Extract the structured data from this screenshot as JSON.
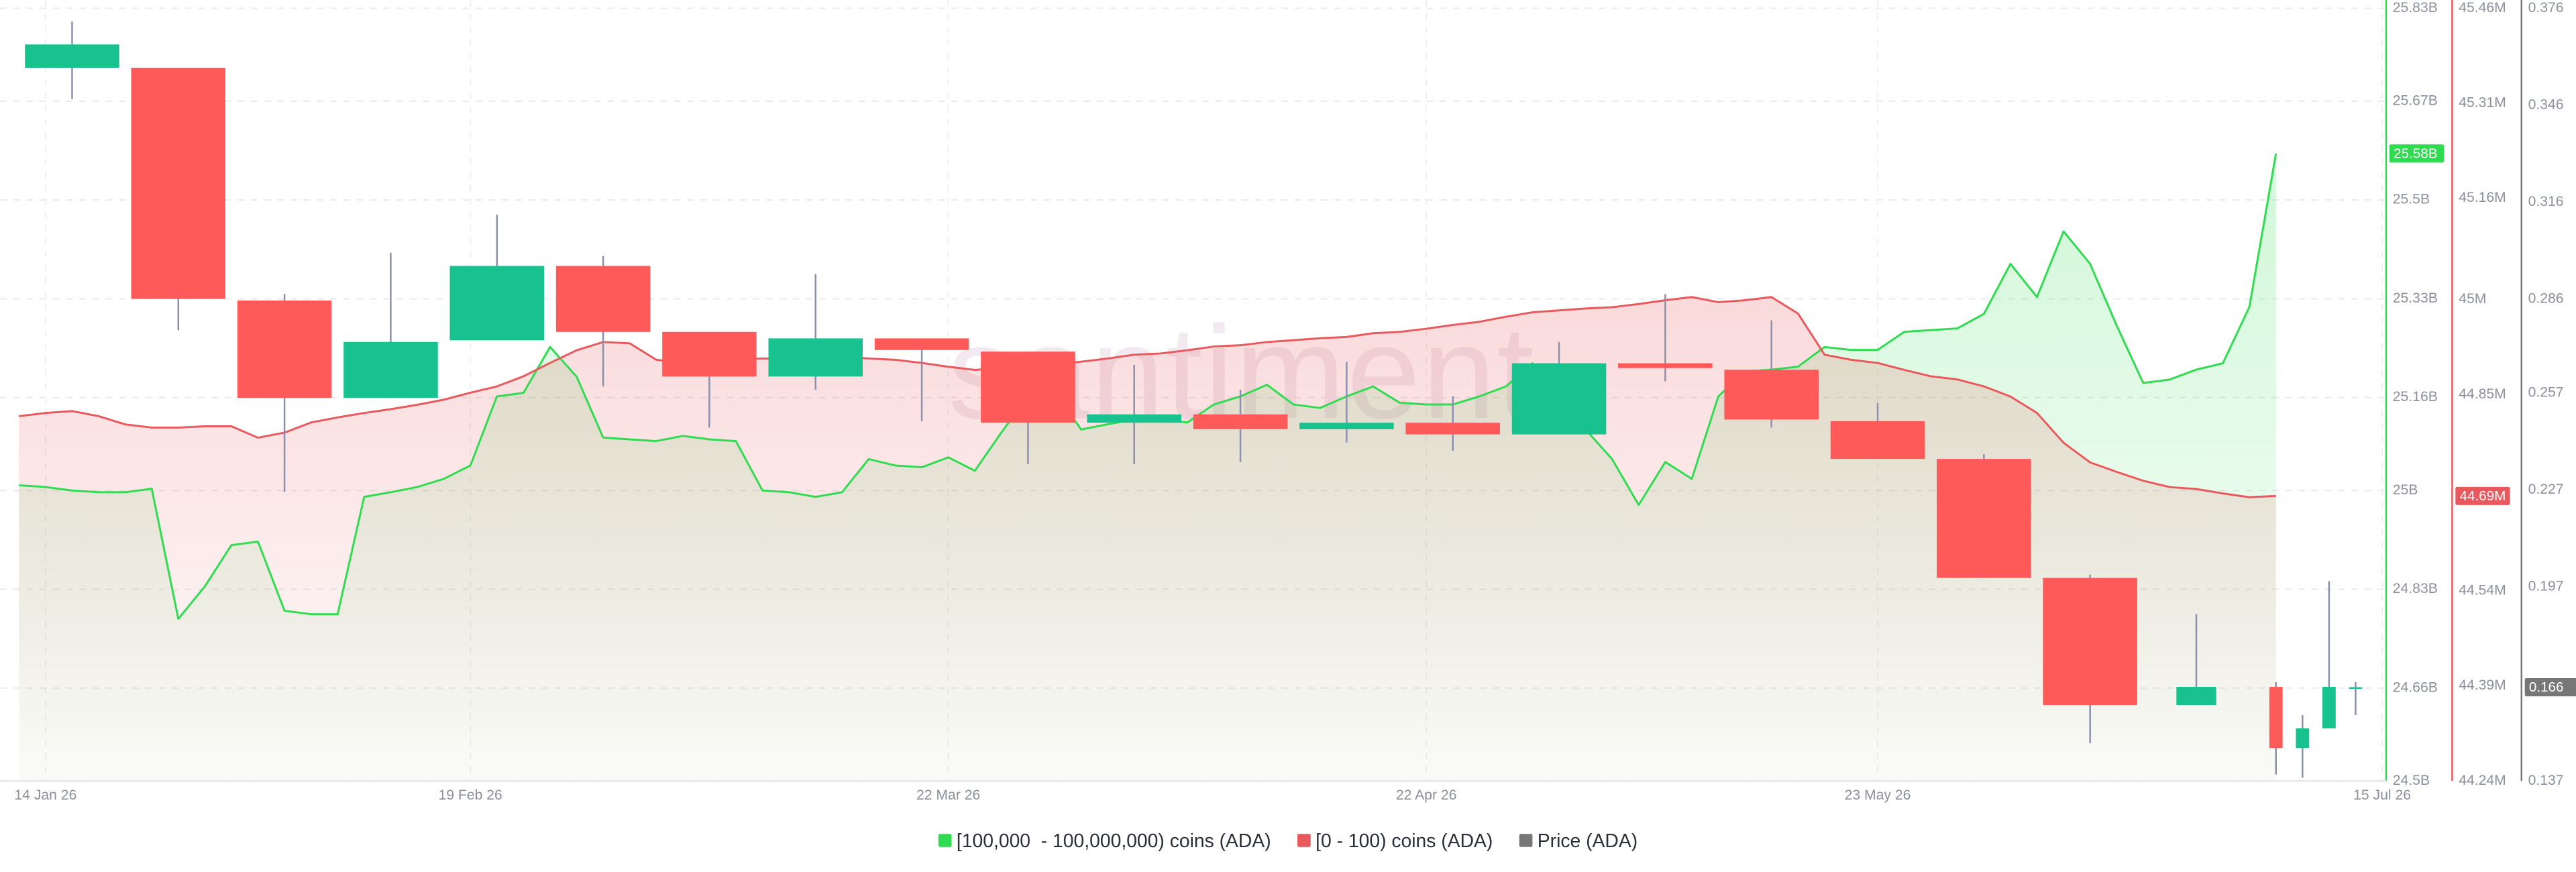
{
  "chart_data": {
    "type": "candlestick",
    "watermark": "santiment",
    "grid": true,
    "categories": [
      null,
      "14 Jan 26",
      null,
      null,
      null,
      null,
      null,
      null,
      null,
      null,
      null,
      null,
      null,
      null,
      null,
      null,
      null,
      "19 Feb 26",
      null,
      null,
      null,
      null,
      null,
      null,
      null,
      null,
      null,
      null,
      null,
      null,
      null,
      null,
      null,
      null,
      null,
      "22 Mar 26",
      null,
      null,
      null,
      null,
      null,
      null,
      null,
      null,
      null,
      null,
      null,
      null,
      null,
      null,
      null,
      null,
      null,
      "22 Apr 26",
      null,
      null,
      null,
      null,
      null,
      null,
      null,
      null,
      null,
      null,
      null,
      null,
      null,
      null,
      null,
      null,
      "23 May 26",
      null,
      null,
      null,
      null,
      null,
      null,
      null,
      null,
      null,
      null,
      null,
      null,
      null,
      null,
      null,
      null,
      null,
      null,
      "15 Jul 26"
    ],
    "ylim": [
      24500000000.0,
      25830000000.0
    ],
    "yticks": [
      {
        "value": 25830000000.0,
        "label": "25.83B"
      },
      {
        "value": 25670000000.0,
        "label": "25.67B"
      },
      {
        "value": 25500000000.0,
        "label": "25.5B"
      },
      {
        "value": 25330000000.0,
        "label": "25.33B"
      },
      {
        "value": 25160000000.0,
        "label": "25.16B"
      },
      {
        "value": 25000000000.0,
        "label": "25B"
      },
      {
        "value": 24830000000.0,
        "label": "24.83B"
      },
      {
        "value": 24660000000.0,
        "label": "24.66B"
      },
      {
        "value": 24500000000.0,
        "label": "24.5B"
      }
    ],
    "y2lim": [
      44240000.0,
      45460000.0
    ],
    "y2ticks": [
      {
        "value": 45460000.0,
        "label": "45.46M"
      },
      {
        "value": 45310000.0,
        "label": "45.31M"
      },
      {
        "value": 45160000.0,
        "label": "45.16M"
      },
      {
        "value": 45000000.0,
        "label": "45M"
      },
      {
        "value": 44850000.0,
        "label": "44.85M"
      },
      {
        "value": 44540000.0,
        "label": "44.54M"
      },
      {
        "value": 44390000.0,
        "label": "44.39M"
      },
      {
        "value": 44240000.0,
        "label": "44.24M"
      }
    ],
    "y3lim": [
      0.137,
      0.376
    ],
    "y3ticks": [
      0.376,
      0.346,
      0.316,
      0.286,
      0.257,
      0.227,
      0.197,
      0.137
    ],
    "series": [
      {
        "name": "[100,000  - 100,000,000) coins (ADA)",
        "type": "line",
        "axis": "y",
        "color": "#2fdc50",
        "values": [
          25009000000.0,
          25006000000.0,
          25000000000.0,
          24997000000.0,
          24997000000.0,
          25003000000.0,
          24779000000.0,
          24835000000.0,
          24906000000.0,
          24912000000.0,
          24793000000.0,
          24787000000.0,
          24787000000.0,
          24989000000.0,
          24997000000.0,
          25006000000.0,
          25020000000.0,
          25043000000.0,
          25162000000.0,
          25168000000.0,
          25247000000.0,
          25196000000.0,
          25091000000.0,
          25088000000.0,
          25085000000.0,
          25094000000.0,
          25088000000.0,
          25085000000.0,
          25000000000.0,
          24997000000.0,
          24989000000.0,
          24997000000.0,
          25054000000.0,
          25043000000.0,
          25040000000.0,
          25057000000.0,
          25034000000.0,
          25100000000.0,
          25162000000.0,
          25171000000.0,
          25105000000.0,
          25114000000.0,
          25122000000.0,
          25122000000.0,
          25117000000.0,
          25148000000.0,
          25162000000.0,
          25182000000.0,
          25148000000.0,
          25142000000.0,
          25162000000.0,
          25179000000.0,
          25151000000.0,
          25148000000.0,
          25148000000.0,
          25162000000.0,
          25179000000.0,
          25219000000.0,
          25185000000.0,
          25105000000.0,
          25054000000.0,
          24975000000.0,
          25049000000.0,
          25020000000.0,
          25162000000.0,
          25205000000.0,
          25208000000.0,
          25213000000.0,
          25247000000.0,
          25242000000.0,
          25242000000.0,
          25273000000.0,
          25276000000.0,
          25279000000.0,
          25304000000.0,
          25390000000.0,
          25333000000.0,
          25446000000.0,
          25390000000.0,
          25284000000.0,
          25185000000.0,
          25191000000.0,
          25208000000.0,
          25219000000.0,
          25316000000.0,
          25580000000.0,
          null,
          null,
          null,
          null
        ],
        "value_labels": [
          null,
          null,
          null,
          null,
          null,
          null,
          null,
          null,
          null,
          null,
          null,
          null,
          null,
          null,
          null,
          null,
          null,
          null,
          null,
          null,
          null,
          null,
          null,
          null,
          null,
          null,
          null,
          null,
          null,
          null,
          null,
          null,
          null,
          null,
          null,
          null,
          null,
          null,
          null,
          null,
          null,
          null,
          null,
          null,
          null,
          null,
          null,
          null,
          null,
          null,
          null,
          null,
          null,
          null,
          null,
          null,
          null,
          null,
          null,
          null,
          null,
          null,
          null,
          null,
          null,
          null,
          null,
          null,
          null,
          null,
          null,
          null,
          null,
          null,
          null,
          null,
          null,
          null,
          null,
          null,
          null,
          null,
          null,
          null,
          null,
          "25.58B",
          null,
          null,
          null,
          null
        ]
      },
      {
        "name": "[0 - 100) coins (ADA)",
        "type": "line",
        "axis": "y2",
        "color": "#e8585c",
        "values": [
          44816000.0,
          44821000.0,
          44824000.0,
          44816000.0,
          44803000.0,
          44798000.0,
          44798000.0,
          44800000.0,
          44800000.0,
          44782000.0,
          44790000.0,
          44806000.0,
          44814000.0,
          44821000.0,
          44827000.0,
          44834000.0,
          44842000.0,
          44853000.0,
          44863000.0,
          44879000.0,
          44900000.0,
          44920000.0,
          44933000.0,
          44931000.0,
          44905000.0,
          44900000.0,
          44897000.0,
          44905000.0,
          44907000.0,
          44907000.0,
          44905000.0,
          44910000.0,
          44907000.0,
          44905000.0,
          44900000.0,
          44894000.0,
          44889000.0,
          44892000.0,
          44894000.0,
          44897000.0,
          44902000.0,
          44907000.0,
          44913000.0,
          44915000.0,
          44920000.0,
          44926000.0,
          44928000.0,
          44933000.0,
          44936000.0,
          44939000.0,
          44941000.0,
          44947000.0,
          44949000.0,
          44954000.0,
          44960000.0,
          44965000.0,
          44973000.0,
          44980000.0,
          44983000.0,
          44986000.0,
          44988000.0,
          44993000.0,
          44999000.0,
          45004000.0,
          44996000.0,
          44999000.0,
          45004000.0,
          44978000.0,
          44913000.0,
          44905000.0,
          44900000.0,
          44889000.0,
          44879000.0,
          44874000.0,
          44863000.0,
          44847000.0,
          44821000.0,
          44774000.0,
          44743000.0,
          44728000.0,
          44714000.0,
          44704000.0,
          44701000.0,
          44694000.0,
          44688000.0,
          44690000.0,
          null,
          null,
          null,
          null
        ],
        "value_labels": [
          null,
          null,
          null,
          null,
          null,
          null,
          null,
          null,
          null,
          null,
          null,
          null,
          null,
          null,
          null,
          null,
          null,
          null,
          null,
          null,
          null,
          null,
          null,
          null,
          null,
          null,
          null,
          null,
          null,
          null,
          null,
          null,
          null,
          null,
          null,
          null,
          null,
          null,
          null,
          null,
          null,
          null,
          null,
          null,
          null,
          null,
          null,
          null,
          null,
          null,
          null,
          null,
          null,
          null,
          null,
          null,
          null,
          null,
          null,
          null,
          null,
          null,
          null,
          null,
          null,
          null,
          null,
          null,
          null,
          null,
          null,
          null,
          null,
          null,
          null,
          null,
          null,
          null,
          null,
          null,
          null,
          null,
          null,
          null,
          null,
          "44.69M",
          null,
          null,
          null,
          null
        ]
      },
      {
        "name": "Price (ADA)",
        "type": "candlestick",
        "axis": "y3",
        "color": "#777777",
        "up_color": "#17c28f",
        "down_color": "#ff5a5a",
        "wick_color": "#8a8fae",
        "open": [
          null,
          null,
          0.3576,
          null,
          null,
          null,
          0.3576,
          null,
          null,
          null,
          0.2856,
          null,
          null,
          null,
          0.2555,
          null,
          null,
          null,
          0.2733,
          null,
          null,
          null,
          0.2963,
          null,
          null,
          null,
          0.2759,
          null,
          null,
          null,
          0.2621,
          null,
          null,
          null,
          0.2739,
          null,
          null,
          null,
          0.2698,
          null,
          null,
          null,
          0.2478,
          null,
          null,
          null,
          0.2504,
          null,
          null,
          null,
          0.2458,
          null,
          null,
          null,
          0.2478,
          null,
          null,
          null,
          0.2442,
          null,
          null,
          null,
          0.2662,
          null,
          null,
          null,
          0.2642,
          null,
          null,
          null,
          0.2483,
          null,
          null,
          null,
          0.2366,
          null,
          null,
          null,
          0.1998,
          null,
          null,
          null,
          0.1605,
          null,
          null,
          0.1661,
          0.1472,
          0.1533,
          0.1656,
          null
        ],
        "high": [
          null,
          null,
          0.3719,
          null,
          null,
          null,
          0.3576,
          null,
          null,
          null,
          0.2876,
          null,
          null,
          null,
          0.3004,
          null,
          null,
          null,
          0.3122,
          null,
          null,
          null,
          0.2994,
          null,
          null,
          null,
          0.2759,
          null,
          null,
          null,
          0.2938,
          null,
          null,
          null,
          0.2739,
          null,
          null,
          null,
          0.2698,
          null,
          null,
          null,
          0.2657,
          null,
          null,
          null,
          0.258,
          null,
          null,
          null,
          0.2667,
          null,
          null,
          null,
          0.256,
          null,
          null,
          null,
          0.2728,
          null,
          null,
          null,
          0.2876,
          null,
          null,
          null,
          0.2795,
          null,
          null,
          null,
          0.2539,
          null,
          null,
          null,
          0.2381,
          null,
          null,
          null,
          0.2008,
          null,
          null,
          null,
          0.1886,
          null,
          null,
          0.1676,
          0.1574,
          0.1988,
          0.1676,
          null
        ],
        "low": [
          null,
          null,
          0.3479,
          null,
          null,
          null,
          0.2764,
          null,
          null,
          null,
          0.2264,
          null,
          null,
          null,
          0.2555,
          null,
          null,
          null,
          0.2733,
          null,
          null,
          null,
          0.259,
          null,
          null,
          null,
          0.2463,
          null,
          null,
          null,
          0.258,
          null,
          null,
          null,
          0.2483,
          null,
          null,
          null,
          0.235,
          null,
          null,
          null,
          0.235,
          null,
          null,
          null,
          0.2356,
          null,
          null,
          null,
          0.2417,
          null,
          null,
          null,
          0.2391,
          null,
          null,
          null,
          0.2442,
          null,
          null,
          null,
          0.2606,
          null,
          null,
          null,
          0.2463,
          null,
          null,
          null,
          0.2366,
          null,
          null,
          null,
          0.1998,
          null,
          null,
          null,
          0.1487,
          null,
          null,
          null,
          0.1605,
          null,
          null,
          0.139,
          0.138,
          0.1533,
          0.1574,
          null
        ],
        "close": [
          null,
          null,
          0.3648,
          null,
          null,
          null,
          0.2861,
          null,
          null,
          null,
          0.2555,
          null,
          null,
          null,
          0.2728,
          null,
          null,
          null,
          0.2963,
          null,
          null,
          null,
          0.2759,
          null,
          null,
          null,
          0.2621,
          null,
          null,
          null,
          0.2739,
          null,
          null,
          null,
          0.2703,
          null,
          null,
          null,
          0.2478,
          null,
          null,
          null,
          0.2504,
          null,
          null,
          null,
          0.2458,
          null,
          null,
          null,
          0.2478,
          null,
          null,
          null,
          0.2442,
          null,
          null,
          null,
          0.2662,
          null,
          null,
          null,
          0.2647,
          null,
          null,
          null,
          0.2488,
          null,
          null,
          null,
          0.2366,
          null,
          null,
          null,
          0.1998,
          null,
          null,
          null,
          0.1605,
          null,
          null,
          null,
          0.1661,
          null,
          null,
          0.1472,
          0.1533,
          0.1661,
          0.166,
          null
        ],
        "value_labels": [
          null,
          null,
          null,
          null,
          null,
          null,
          null,
          null,
          null,
          null,
          null,
          null,
          null,
          null,
          null,
          null,
          null,
          null,
          null,
          null,
          null,
          null,
          null,
          null,
          null,
          null,
          null,
          null,
          null,
          null,
          null,
          null,
          null,
          null,
          null,
          null,
          null,
          null,
          null,
          null,
          null,
          null,
          null,
          null,
          null,
          null,
          null,
          null,
          null,
          null,
          null,
          null,
          null,
          null,
          null,
          null,
          null,
          null,
          null,
          null,
          null,
          null,
          null,
          null,
          null,
          null,
          null,
          null,
          null,
          null,
          null,
          null,
          null,
          null,
          null,
          null,
          null,
          null,
          null,
          null,
          null,
          null,
          null,
          null,
          null,
          null,
          null,
          null,
          "0.166",
          null
        ]
      }
    ]
  }
}
